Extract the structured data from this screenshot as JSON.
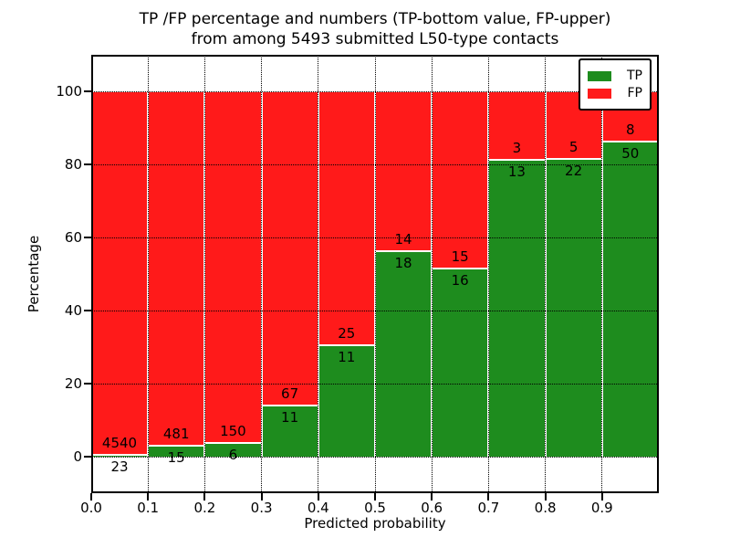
{
  "header": {
    "title_line1": "TP /FP percentage and numbers (TP-bottom value, FP-upper)",
    "title_line2": "from among 5493 submitted L50-type contacts"
  },
  "axes": {
    "xlabel": "Predicted probability",
    "ylabel": "Percentage",
    "x_ticks": [
      "0.0",
      "0.1",
      "0.2",
      "0.3",
      "0.4",
      "0.5",
      "0.6",
      "0.7",
      "0.8",
      "0.9"
    ],
    "x_tick_values": [
      0.0,
      0.1,
      0.2,
      0.3,
      0.4,
      0.5,
      0.6,
      0.7,
      0.8,
      0.9
    ],
    "x_grid_values": [
      0.1,
      0.2,
      0.3,
      0.4,
      0.5,
      0.6,
      0.7,
      0.8,
      0.9
    ],
    "y_ticks": [
      "0",
      "20",
      "40",
      "60",
      "80",
      "100"
    ],
    "y_tick_values": [
      0,
      20,
      40,
      60,
      80,
      100
    ],
    "xlim": [
      0,
      1
    ],
    "ylim": [
      -10,
      110
    ]
  },
  "colors": {
    "tp": "#1E8C1E",
    "fp": "#FF1A1A",
    "grid": "#000000",
    "bar_edge": "#FFFFFF",
    "background": "#FFFFFF"
  },
  "legend": {
    "position": "upper right",
    "items": [
      {
        "label": "TP",
        "color": "#1E8C1E"
      },
      {
        "label": "FP",
        "color": "#FF1A1A"
      }
    ]
  },
  "chart_data": {
    "type": "bar",
    "stacked": true,
    "title": "TP /FP percentage and numbers (TP-bottom value, FP-upper) from among 5493 submitted L50-type contacts",
    "xlabel": "Predicted probability",
    "ylabel": "Percentage",
    "total_contacts": 5493,
    "bin_edges": [
      0.0,
      0.1,
      0.2,
      0.3,
      0.4,
      0.5,
      0.6,
      0.7,
      0.8,
      0.9,
      1.0
    ],
    "categories": [
      "0.0-0.1",
      "0.1-0.2",
      "0.2-0.3",
      "0.3-0.4",
      "0.4-0.5",
      "0.5-0.6",
      "0.6-0.7",
      "0.7-0.8",
      "0.8-0.9",
      "0.9-1.0"
    ],
    "series": [
      {
        "name": "TP",
        "color": "#1E8C1E",
        "counts": [
          23,
          15,
          6,
          11,
          11,
          18,
          16,
          13,
          22,
          50
        ],
        "percent": [
          0.5,
          3.0,
          3.8,
          14.1,
          30.6,
          56.2,
          51.6,
          81.2,
          81.5,
          86.2
        ]
      },
      {
        "name": "FP",
        "color": "#FF1A1A",
        "counts": [
          4540,
          481,
          150,
          67,
          25,
          14,
          15,
          3,
          5,
          8
        ],
        "percent": [
          99.5,
          97.0,
          96.2,
          85.9,
          69.4,
          43.8,
          48.4,
          18.8,
          18.5,
          13.8
        ]
      }
    ],
    "bar_total_percent": 100,
    "ylim": [
      -10,
      110
    ],
    "xlim": [
      0,
      1
    ],
    "grid": "dotted black, drawn above bars",
    "legend_position": "upper right"
  }
}
